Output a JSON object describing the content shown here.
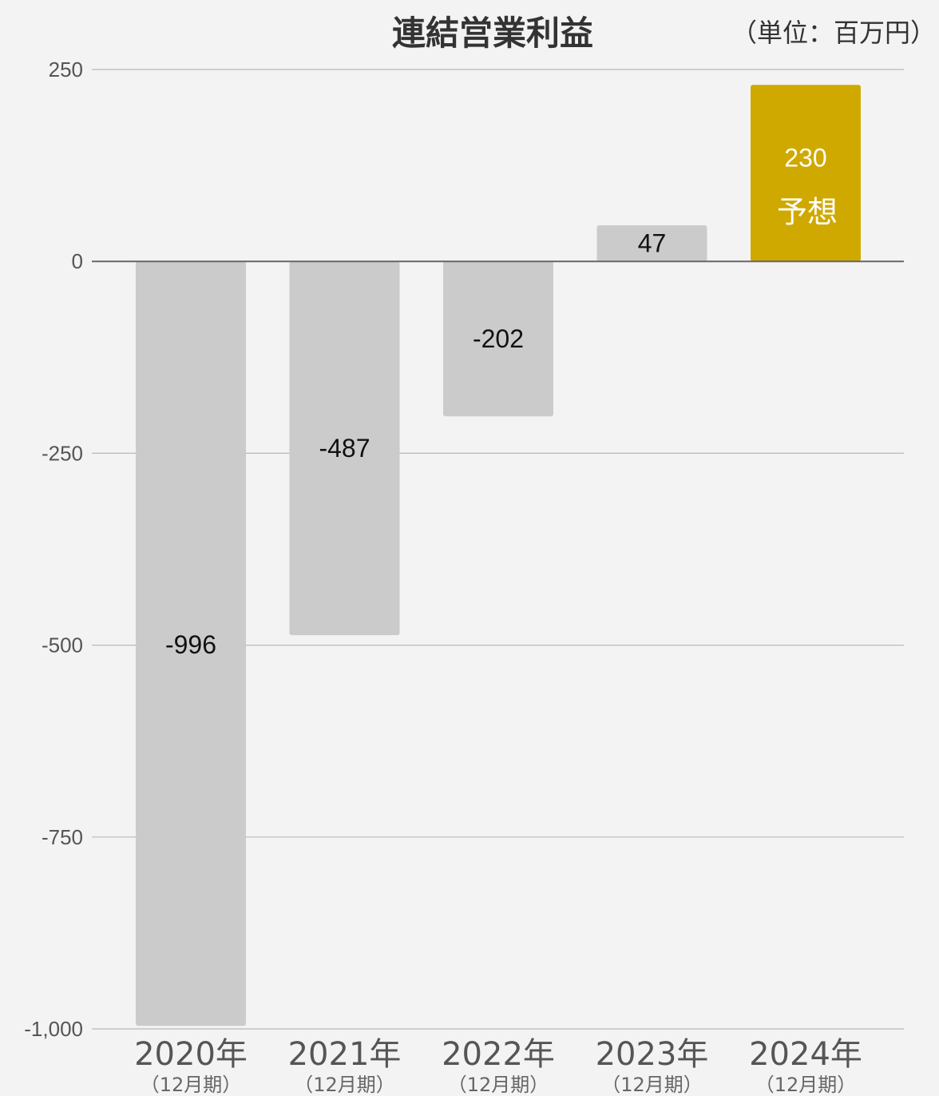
{
  "chart_data": {
    "type": "bar",
    "title": "連結営業利益",
    "unit_label": "（単位：百万円）",
    "categories": [
      "2020年",
      "2021年",
      "2022年",
      "2023年",
      "2024年"
    ],
    "category_sublabels": [
      "（12月期）",
      "（12月期）",
      "（12月期）",
      "（12月期）",
      "（12月期）"
    ],
    "values": [
      -996,
      -487,
      -202,
      47,
      230
    ],
    "value_labels": [
      "-996",
      "-487",
      "-202",
      "47",
      "230"
    ],
    "forecast_note": "予想",
    "forecast_index": 4,
    "ylim": [
      -1000,
      250
    ],
    "yticks": [
      250,
      0,
      -250,
      -500,
      -750,
      -1000
    ],
    "ytick_labels": [
      "250",
      "0",
      "-250",
      "-500",
      "-750",
      "-1,000"
    ],
    "grid": true,
    "xlabel": "",
    "ylabel": "",
    "colors": {
      "actual_bar": "#cbcbcb",
      "forecast_bar": "#cfa900",
      "forecast_text": "#ffffff",
      "value_text": "#111111",
      "grid": "#b9b9b9",
      "zero_line": "#666666",
      "axis_text": "#555555",
      "category_text": "#555555",
      "sublabel_text": "#666666",
      "background": "#f3f3f3"
    }
  }
}
